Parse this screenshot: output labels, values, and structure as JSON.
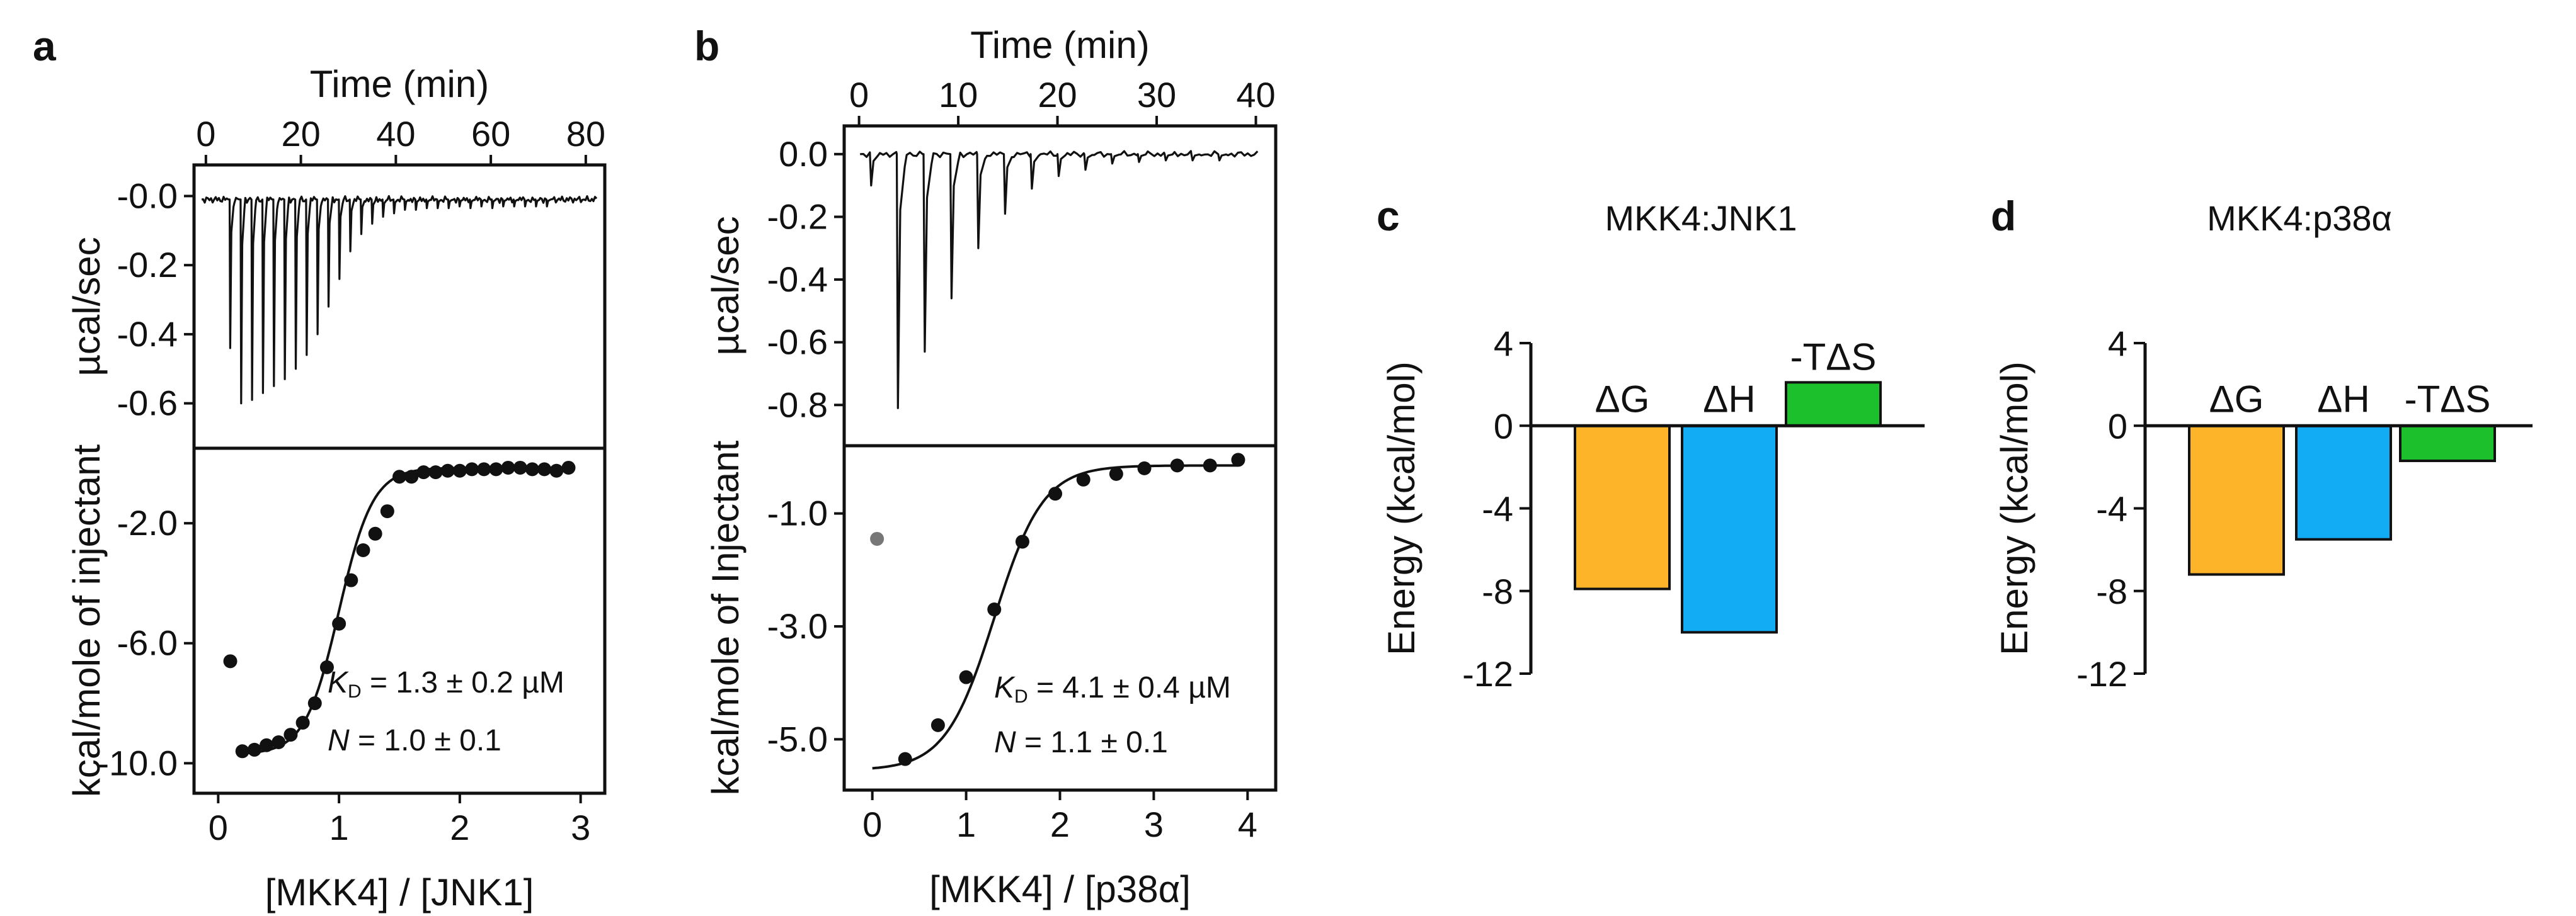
{
  "colors": {
    "delta_g": "#FDB428",
    "delta_h": "#12ACF5",
    "neg_t_delta_s": "#1CC02C",
    "first_point": "#777777",
    "ink": "#111111"
  },
  "chart_data": [
    {
      "panel": "a",
      "type": "line",
      "role": "raw-thermogram",
      "xlabel": "Time (min)",
      "ylabel": "µcal/sec",
      "xlim": [
        -2.5,
        84
      ],
      "ylim": [
        -0.73,
        0.09
      ],
      "xticks": [
        0,
        20,
        40,
        60,
        80
      ],
      "yticks": [
        -0.0,
        -0.2,
        -0.4,
        -0.6
      ],
      "ytick_labels": [
        "-0.0",
        "-0.2",
        "-0.4",
        "-0.6"
      ],
      "baseline": -0.01,
      "injections": {
        "times": [
          5,
          7.3,
          9.6,
          11.9,
          14.2,
          16.5,
          18.8,
          21.1,
          23.4,
          25.7,
          28,
          30.3,
          32.6,
          34.9,
          37.2,
          39.5,
          41.8,
          44.1,
          46.4,
          48.7,
          51,
          53.3,
          55.6,
          57.9,
          60.2,
          62.5,
          64.8,
          67.1,
          69.4,
          71.7
        ],
        "peaks": [
          -0.44,
          -0.6,
          -0.59,
          -0.57,
          -0.55,
          -0.53,
          -0.5,
          -0.46,
          -0.4,
          -0.32,
          -0.24,
          -0.16,
          -0.11,
          -0.08,
          -0.06,
          -0.05,
          -0.04,
          -0.04,
          -0.035,
          -0.035,
          -0.035,
          -0.03,
          -0.035,
          -0.03,
          -0.035,
          -0.03,
          -0.03,
          -0.03,
          -0.03,
          -0.03
        ]
      }
    },
    {
      "panel": "a",
      "type": "scatter",
      "role": "binding-isotherm",
      "xlabel": "[MKK4] / [JNK1]",
      "ylabel": "kcal/mole of injectant",
      "xlim": [
        -0.2,
        3.2
      ],
      "ylim": [
        -11.0,
        0.5
      ],
      "xticks": [
        0,
        1,
        2,
        3
      ],
      "yticks": [
        -2.0,
        -6.0,
        -10.0
      ],
      "ytick_labels": [
        "-2.0",
        "-6.0",
        "-10.0"
      ],
      "first_point": [
        0.1,
        -6.6
      ],
      "x": [
        0.2,
        0.3,
        0.4,
        0.5,
        0.6,
        0.7,
        0.8,
        0.9,
        1.0,
        1.1,
        1.2,
        1.3,
        1.4,
        1.5,
        1.6,
        1.7,
        1.8,
        1.9,
        2.0,
        2.1,
        2.2,
        2.3,
        2.4,
        2.5,
        2.6,
        2.7,
        2.8,
        2.9
      ],
      "y": [
        -9.6,
        -9.55,
        -9.4,
        -9.3,
        -9.05,
        -8.65,
        -8.0,
        -6.8,
        -5.35,
        -3.9,
        -2.9,
        -2.35,
        -1.6,
        -0.45,
        -0.45,
        -0.3,
        -0.3,
        -0.25,
        -0.25,
        -0.2,
        -0.2,
        -0.2,
        -0.15,
        -0.15,
        -0.2,
        -0.2,
        -0.25,
        -0.15
      ],
      "fit": {
        "bottom": -9.7,
        "top": -0.15,
        "x0": 1.0,
        "width": 0.14,
        "x_range": [
          0.2,
          2.9
        ]
      },
      "annotations": {
        "kd": "= 1.3 ± 0.2 µM",
        "kd_symbol": "K",
        "kd_subscript": "D",
        "n": "= 1.0 ± 0.1",
        "n_symbol": "N"
      }
    },
    {
      "panel": "b",
      "type": "line",
      "role": "raw-thermogram",
      "xlabel": "Time (min)",
      "ylabel": "µcal/sec",
      "xlim": [
        -1.5,
        42
      ],
      "ylim": [
        -0.93,
        0.09
      ],
      "xticks": [
        0,
        10,
        20,
        30,
        40
      ],
      "yticks": [
        0.0,
        -0.2,
        -0.4,
        -0.6,
        -0.8
      ],
      "ytick_labels": [
        "0.0",
        "-0.2",
        "-0.4",
        "-0.6",
        "-0.8"
      ],
      "baseline": 0.0,
      "injections": {
        "times": [
          1.1,
          3.8,
          6.5,
          9.2,
          11.9,
          14.6,
          17.3,
          20.0,
          22.7,
          25.4,
          28.1,
          30.8,
          33.5,
          36.2
        ],
        "peaks": [
          -0.1,
          -0.81,
          -0.63,
          -0.46,
          -0.3,
          -0.19,
          -0.11,
          -0.07,
          -0.05,
          -0.03,
          -0.025,
          -0.02,
          -0.02,
          -0.02
        ]
      }
    },
    {
      "panel": "b",
      "type": "scatter",
      "role": "binding-isotherm",
      "xlabel": "[MKK4] / [p38α]",
      "ylabel": "kcal/mole of Injectant",
      "xlim": [
        -0.3,
        4.3
      ],
      "ylim": [
        -5.9,
        0.2
      ],
      "xticks": [
        0,
        1,
        2,
        3,
        4
      ],
      "yticks": [
        -1.0,
        -3.0,
        -5.0
      ],
      "ytick_labels": [
        "-1.0",
        "-3.0",
        "-5.0"
      ],
      "first_point": [
        0.05,
        -1.45
      ],
      "x": [
        0.35,
        0.7,
        1.0,
        1.3,
        1.6,
        1.95,
        2.25,
        2.6,
        2.9,
        3.25,
        3.6,
        3.9
      ],
      "y": [
        -5.35,
        -4.75,
        -3.9,
        -2.7,
        -1.5,
        -0.65,
        -0.4,
        -0.3,
        -0.2,
        -0.15,
        -0.15,
        -0.05
      ],
      "fit": {
        "bottom": -5.55,
        "top": -0.15,
        "x0": 1.3,
        "width": 0.26,
        "x_range": [
          0.0,
          3.9
        ]
      },
      "annotations": {
        "kd": "= 4.1 ± 0.4 µM",
        "kd_symbol": "K",
        "kd_subscript": "D",
        "n": "= 1.1 ± 0.1",
        "n_symbol": "N"
      }
    },
    {
      "panel": "c",
      "type": "bar",
      "title": "MKK4:JNK1",
      "ylabel": "Energy (kcal/mol)",
      "ylim": [
        -12,
        4
      ],
      "yticks": [
        4,
        0,
        -4,
        -8,
        -12
      ],
      "categories": [
        "ΔG",
        "ΔH",
        "-TΔS"
      ],
      "values": [
        -7.9,
        -10.0,
        2.1
      ]
    },
    {
      "panel": "d",
      "type": "bar",
      "title": "MKK4:p38α",
      "ylabel": "Energy (kcal/mol)",
      "ylim": [
        -12,
        4
      ],
      "yticks": [
        4,
        0,
        -4,
        -8,
        -12
      ],
      "categories": [
        "ΔG",
        "ΔH",
        "-TΔS"
      ],
      "values": [
        -7.2,
        -5.5,
        -1.7
      ]
    }
  ]
}
